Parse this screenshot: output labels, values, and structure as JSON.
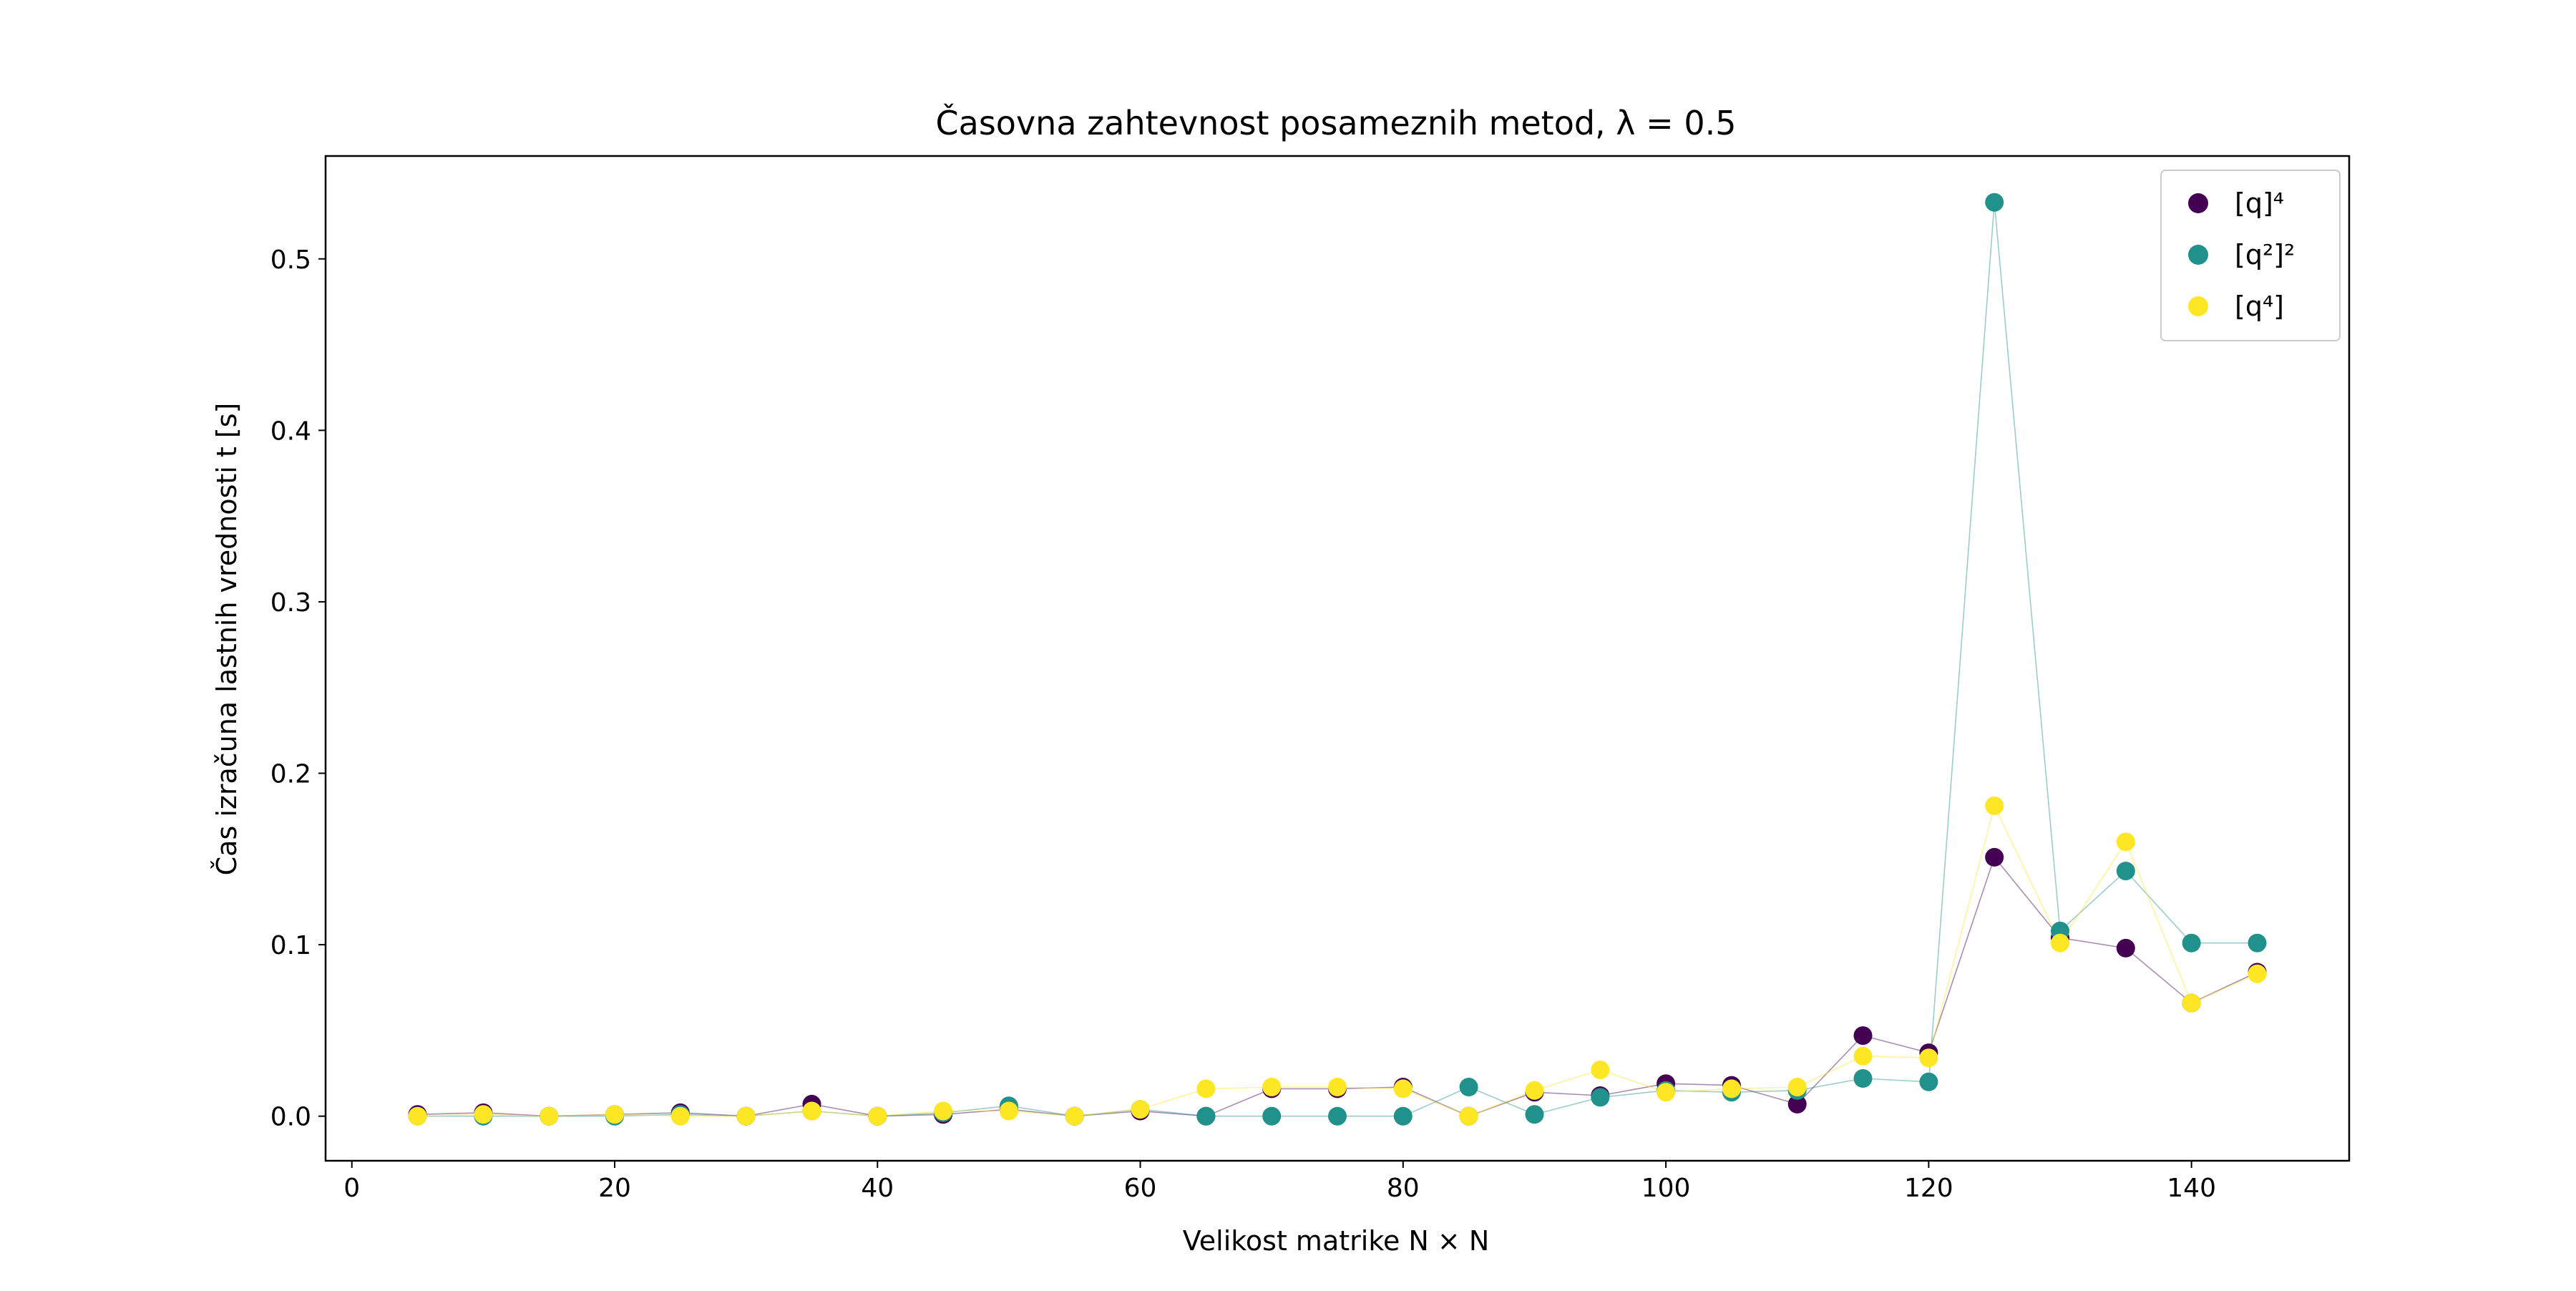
{
  "chart_data": {
    "type": "scatter",
    "title": "Časovna zahtevnost posameznih metod, λ = 0.5",
    "xlabel": "Velikost matrike N × N",
    "ylabel": "Čas izračuna lastnih vrednosti t [s]",
    "xlim": [
      -2.0,
      152.0
    ],
    "ylim": [
      -0.026,
      0.56
    ],
    "xticks": [
      0,
      20,
      40,
      60,
      80,
      100,
      120,
      140
    ],
    "yticks": [
      0.0,
      0.1,
      0.2,
      0.3,
      0.4,
      0.5
    ],
    "xtick_labels": [
      "0",
      "20",
      "40",
      "60",
      "80",
      "100",
      "120",
      "140"
    ],
    "ytick_labels": [
      "0.0",
      "0.1",
      "0.2",
      "0.3",
      "0.4",
      "0.5"
    ],
    "grid": false,
    "legend_position": "top-right",
    "x": [
      5,
      10,
      15,
      20,
      25,
      30,
      35,
      40,
      45,
      50,
      55,
      60,
      65,
      70,
      75,
      80,
      85,
      90,
      95,
      100,
      105,
      110,
      115,
      120,
      125,
      130,
      135,
      140,
      145
    ],
    "series": [
      {
        "name": "[q]⁴",
        "color": "#440154",
        "values": [
          0.001,
          0.002,
          0.0,
          0.001,
          0.002,
          0.0,
          0.007,
          0.0,
          0.001,
          0.004,
          0.0,
          0.003,
          0.0,
          0.016,
          0.016,
          0.017,
          0.0,
          0.014,
          0.012,
          0.019,
          0.018,
          0.007,
          0.047,
          0.037,
          0.151,
          0.104,
          0.098,
          0.066,
          0.084
        ]
      },
      {
        "name": "[q²]²",
        "color": "#21918c",
        "values": [
          0.0,
          0.0,
          0.0,
          0.0,
          0.001,
          0.0,
          0.003,
          0.0,
          0.002,
          0.006,
          0.0,
          0.004,
          0.0,
          0.0,
          0.0,
          0.0,
          0.017,
          0.001,
          0.011,
          0.015,
          0.014,
          0.015,
          0.022,
          0.02,
          0.533,
          0.108,
          0.143,
          0.101,
          0.101
        ]
      },
      {
        "name": "[q⁴]",
        "color": "#fde725",
        "values": [
          0.0,
          0.001,
          0.0,
          0.001,
          0.0,
          0.0,
          0.003,
          0.0,
          0.003,
          0.003,
          0.0,
          0.004,
          0.016,
          0.017,
          0.017,
          0.016,
          0.0,
          0.015,
          0.027,
          0.014,
          0.016,
          0.017,
          0.035,
          0.034,
          0.181,
          0.101,
          0.16,
          0.066,
          0.083
        ]
      }
    ]
  }
}
